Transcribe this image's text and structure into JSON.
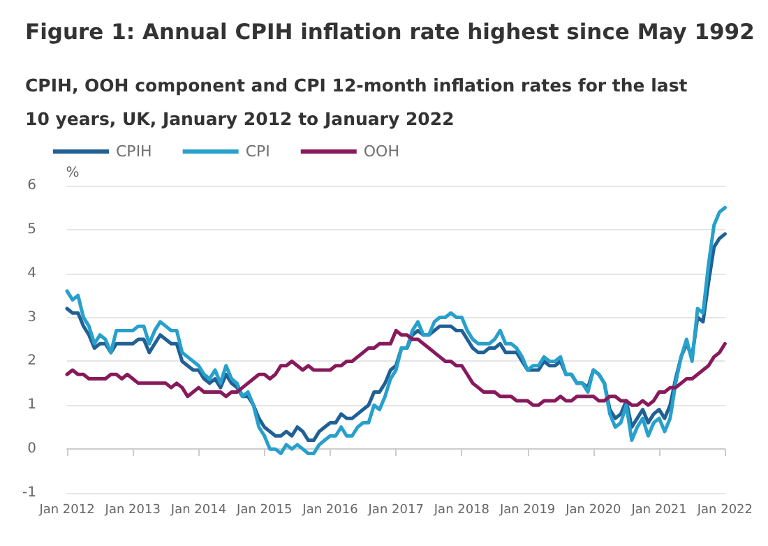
{
  "chart_data": {
    "type": "line",
    "title": "Figure 1: Annual CPIH inflation rate highest since May 1992",
    "subtitle": "CPIH, OOH component and CPI 12-month inflation rates for the last 10 years, UK, January 2012 to January 2022",
    "ylabel": "%",
    "categories": [
      "Jan 2012",
      null,
      null,
      null,
      null,
      null,
      null,
      null,
      null,
      null,
      null,
      null,
      "Jan 2013",
      null,
      null,
      null,
      null,
      null,
      null,
      null,
      null,
      null,
      null,
      null,
      "Jan 2014",
      null,
      null,
      null,
      null,
      null,
      null,
      null,
      null,
      null,
      null,
      null,
      "Jan 2015",
      null,
      null,
      null,
      null,
      null,
      null,
      null,
      null,
      null,
      null,
      null,
      "Jan 2016",
      null,
      null,
      null,
      null,
      null,
      null,
      null,
      null,
      null,
      null,
      null,
      "Jan 2017",
      null,
      null,
      null,
      null,
      null,
      null,
      null,
      null,
      null,
      null,
      null,
      "Jan 2018",
      null,
      null,
      null,
      null,
      null,
      null,
      null,
      null,
      null,
      null,
      null,
      "Jan 2019",
      null,
      null,
      null,
      null,
      null,
      null,
      null,
      null,
      null,
      null,
      null,
      "Jan 2020",
      null,
      null,
      null,
      null,
      null,
      null,
      null,
      null,
      null,
      null,
      null,
      "Jan 2021",
      null,
      null,
      null,
      null,
      null,
      null,
      null,
      null,
      null,
      null,
      null,
      "Jan 2022"
    ],
    "series": [
      {
        "name": "CPIH",
        "color": "#206095",
        "values": [
          3.2,
          3.1,
          3.1,
          2.8,
          2.6,
          2.3,
          2.4,
          2.4,
          2.2,
          2.4,
          2.4,
          2.4,
          2.4,
          2.5,
          2.5,
          2.2,
          2.4,
          2.6,
          2.5,
          2.4,
          2.4,
          2.0,
          1.9,
          1.8,
          1.8,
          1.6,
          1.5,
          1.6,
          1.4,
          1.7,
          1.5,
          1.4,
          1.2,
          1.2,
          1.0,
          0.7,
          0.5,
          0.4,
          0.3,
          0.3,
          0.4,
          0.3,
          0.5,
          0.4,
          0.2,
          0.2,
          0.4,
          0.5,
          0.6,
          0.6,
          0.8,
          0.7,
          0.7,
          0.8,
          0.9,
          1.0,
          1.3,
          1.3,
          1.5,
          1.8,
          1.9,
          2.3,
          2.3,
          2.6,
          2.7,
          2.6,
          2.6,
          2.7,
          2.8,
          2.8,
          2.8,
          2.7,
          2.7,
          2.5,
          2.3,
          2.2,
          2.2,
          2.3,
          2.3,
          2.4,
          2.2,
          2.2,
          2.2,
          2.0,
          1.8,
          1.8,
          1.8,
          2.0,
          1.9,
          1.9,
          2.0,
          1.7,
          1.7,
          1.5,
          1.5,
          1.4,
          1.8,
          1.7,
          1.5,
          0.9,
          0.7,
          0.8,
          1.1,
          0.5,
          0.7,
          0.9,
          0.6,
          0.8,
          0.9,
          0.7,
          1.0,
          1.6,
          2.1,
          2.4,
          2.1,
          3.0,
          2.9,
          3.8,
          4.6,
          4.8,
          4.9
        ]
      },
      {
        "name": "CPI",
        "color": "#27a0cc",
        "values": [
          3.6,
          3.4,
          3.5,
          3.0,
          2.8,
          2.4,
          2.6,
          2.5,
          2.2,
          2.7,
          2.7,
          2.7,
          2.7,
          2.8,
          2.8,
          2.4,
          2.7,
          2.9,
          2.8,
          2.7,
          2.7,
          2.2,
          2.1,
          2.0,
          1.9,
          1.7,
          1.6,
          1.8,
          1.5,
          1.9,
          1.6,
          1.5,
          1.2,
          1.3,
          1.0,
          0.5,
          0.3,
          0.0,
          0.0,
          -0.1,
          0.1,
          0.0,
          0.1,
          0.0,
          -0.1,
          -0.1,
          0.1,
          0.2,
          0.3,
          0.3,
          0.5,
          0.3,
          0.3,
          0.5,
          0.6,
          0.6,
          1.0,
          0.9,
          1.2,
          1.6,
          1.8,
          2.3,
          2.3,
          2.7,
          2.9,
          2.6,
          2.6,
          2.9,
          3.0,
          3.0,
          3.1,
          3.0,
          3.0,
          2.7,
          2.5,
          2.4,
          2.4,
          2.4,
          2.5,
          2.7,
          2.4,
          2.4,
          2.3,
          2.1,
          1.8,
          1.9,
          1.9,
          2.1,
          2.0,
          2.0,
          2.1,
          1.7,
          1.7,
          1.5,
          1.5,
          1.3,
          1.8,
          1.7,
          1.5,
          0.8,
          0.5,
          0.6,
          1.0,
          0.2,
          0.5,
          0.7,
          0.3,
          0.6,
          0.7,
          0.4,
          0.7,
          1.5,
          2.1,
          2.5,
          2.0,
          3.2,
          3.1,
          4.2,
          5.1,
          5.4,
          5.5
        ]
      },
      {
        "name": "OOH",
        "color": "#871a5b",
        "values": [
          1.7,
          1.8,
          1.7,
          1.7,
          1.6,
          1.6,
          1.6,
          1.6,
          1.7,
          1.7,
          1.6,
          1.7,
          1.6,
          1.5,
          1.5,
          1.5,
          1.5,
          1.5,
          1.5,
          1.4,
          1.5,
          1.4,
          1.2,
          1.3,
          1.4,
          1.3,
          1.3,
          1.3,
          1.3,
          1.2,
          1.3,
          1.3,
          1.4,
          1.5,
          1.6,
          1.7,
          1.7,
          1.6,
          1.7,
          1.9,
          1.9,
          2.0,
          1.9,
          1.8,
          1.9,
          1.8,
          1.8,
          1.8,
          1.8,
          1.9,
          1.9,
          2.0,
          2.0,
          2.1,
          2.2,
          2.3,
          2.3,
          2.4,
          2.4,
          2.4,
          2.7,
          2.6,
          2.6,
          2.5,
          2.5,
          2.4,
          2.3,
          2.2,
          2.1,
          2.0,
          2.0,
          1.9,
          1.9,
          1.7,
          1.5,
          1.4,
          1.3,
          1.3,
          1.3,
          1.2,
          1.2,
          1.2,
          1.1,
          1.1,
          1.1,
          1.0,
          1.0,
          1.1,
          1.1,
          1.1,
          1.2,
          1.1,
          1.1,
          1.2,
          1.2,
          1.2,
          1.2,
          1.1,
          1.1,
          1.2,
          1.2,
          1.1,
          1.1,
          1.0,
          1.0,
          1.1,
          1.0,
          1.1,
          1.3,
          1.3,
          1.4,
          1.4,
          1.5,
          1.6,
          1.6,
          1.7,
          1.8,
          1.9,
          2.1,
          2.2,
          2.4
        ]
      }
    ],
    "ylim": [
      -1,
      6
    ],
    "yticks": [
      -1,
      0,
      1,
      2,
      3,
      4,
      5,
      6
    ],
    "grid": "y",
    "legend": "top left",
    "marker": "none",
    "line_style": "solid"
  }
}
